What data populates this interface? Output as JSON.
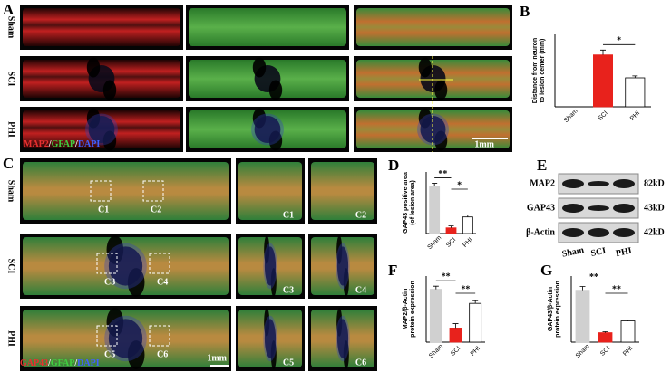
{
  "figure": {
    "panel_a": {
      "label": "A",
      "rows": [
        "Sham",
        "SCI",
        "PHI"
      ],
      "stain": [
        {
          "text": "MAP2",
          "color": "#e83030"
        },
        {
          "text": "/",
          "color": "#ffffff"
        },
        {
          "text": "GFAP",
          "color": "#40d040"
        },
        {
          "text": "/",
          "color": "#ffffff"
        },
        {
          "text": "DAPI",
          "color": "#4060ff"
        }
      ],
      "scale": "1mm"
    },
    "panel_c": {
      "label": "C",
      "rows": [
        "Sham",
        "SCI",
        "PHI"
      ],
      "boxes": [
        "C1",
        "C2",
        "C3",
        "C4",
        "C5",
        "C6"
      ],
      "stain": [
        {
          "text": "GAP43",
          "color": "#e83030"
        },
        {
          "text": "/",
          "color": "#ffffff"
        },
        {
          "text": "GFAP",
          "color": "#40d040"
        },
        {
          "text": "/",
          "color": "#ffffff"
        },
        {
          "text": "DAPI",
          "color": "#4060ff"
        }
      ],
      "scale": "1mm"
    },
    "panel_e": {
      "label": "E",
      "proteins": [
        "MAP2",
        "GAP43",
        "β-Actin"
      ],
      "sizes": [
        "82kD",
        "43kD",
        "42kD"
      ],
      "lanes": [
        "Sham",
        "SCI",
        "PHI"
      ]
    }
  },
  "chart_data": [
    {
      "type": "bar",
      "panel": "B",
      "ylabel": [
        "Distance from neuron",
        "to lesion center (mm)"
      ],
      "categories": [
        "Sham",
        "SCI",
        "PHI"
      ],
      "values": [
        0,
        2.15,
        1.2
      ],
      "errors": [
        0,
        0.2,
        0.08
      ],
      "colors": [
        "#d0d0d0",
        "#e8221c",
        "#ffffff"
      ],
      "ylim": [
        0,
        3
      ],
      "annotations": [
        "*"
      ]
    },
    {
      "type": "bar",
      "panel": "D",
      "ylabel": [
        "GAP43 positive area",
        "(of lesion area)"
      ],
      "categories": [
        "Sham",
        "SCI",
        "PHI"
      ],
      "values": [
        1.0,
        0.12,
        0.35
      ],
      "errors": [
        0.06,
        0.04,
        0.04
      ],
      "colors": [
        "#d0d0d0",
        "#e8221c",
        "#ffffff"
      ],
      "ylim": [
        0,
        1.3
      ],
      "annotations": [
        "**",
        "*"
      ]
    },
    {
      "type": "bar",
      "panel": "F",
      "ylabel": [
        "MAP2/β-Actin",
        "protein expression"
      ],
      "categories": [
        "Sham",
        "SCI",
        "PHI"
      ],
      "values": [
        1.2,
        0.32,
        0.88
      ],
      "errors": [
        0.07,
        0.1,
        0.06
      ],
      "colors": [
        "#d0d0d0",
        "#e8221c",
        "#ffffff"
      ],
      "ylim": [
        0,
        1.5
      ],
      "annotations": [
        "**",
        "**"
      ]
    },
    {
      "type": "bar",
      "panel": "G",
      "ylabel": [
        "GAP43/β-Actin",
        "protein expression"
      ],
      "categories": [
        "Sham",
        "SCI",
        "PHI"
      ],
      "values": [
        1.1,
        0.2,
        0.45
      ],
      "errors": [
        0.08,
        0.02,
        0.02
      ],
      "colors": [
        "#d0d0d0",
        "#e8221c",
        "#ffffff"
      ],
      "ylim": [
        0,
        1.4
      ],
      "annotations": [
        "**",
        "**"
      ]
    }
  ]
}
